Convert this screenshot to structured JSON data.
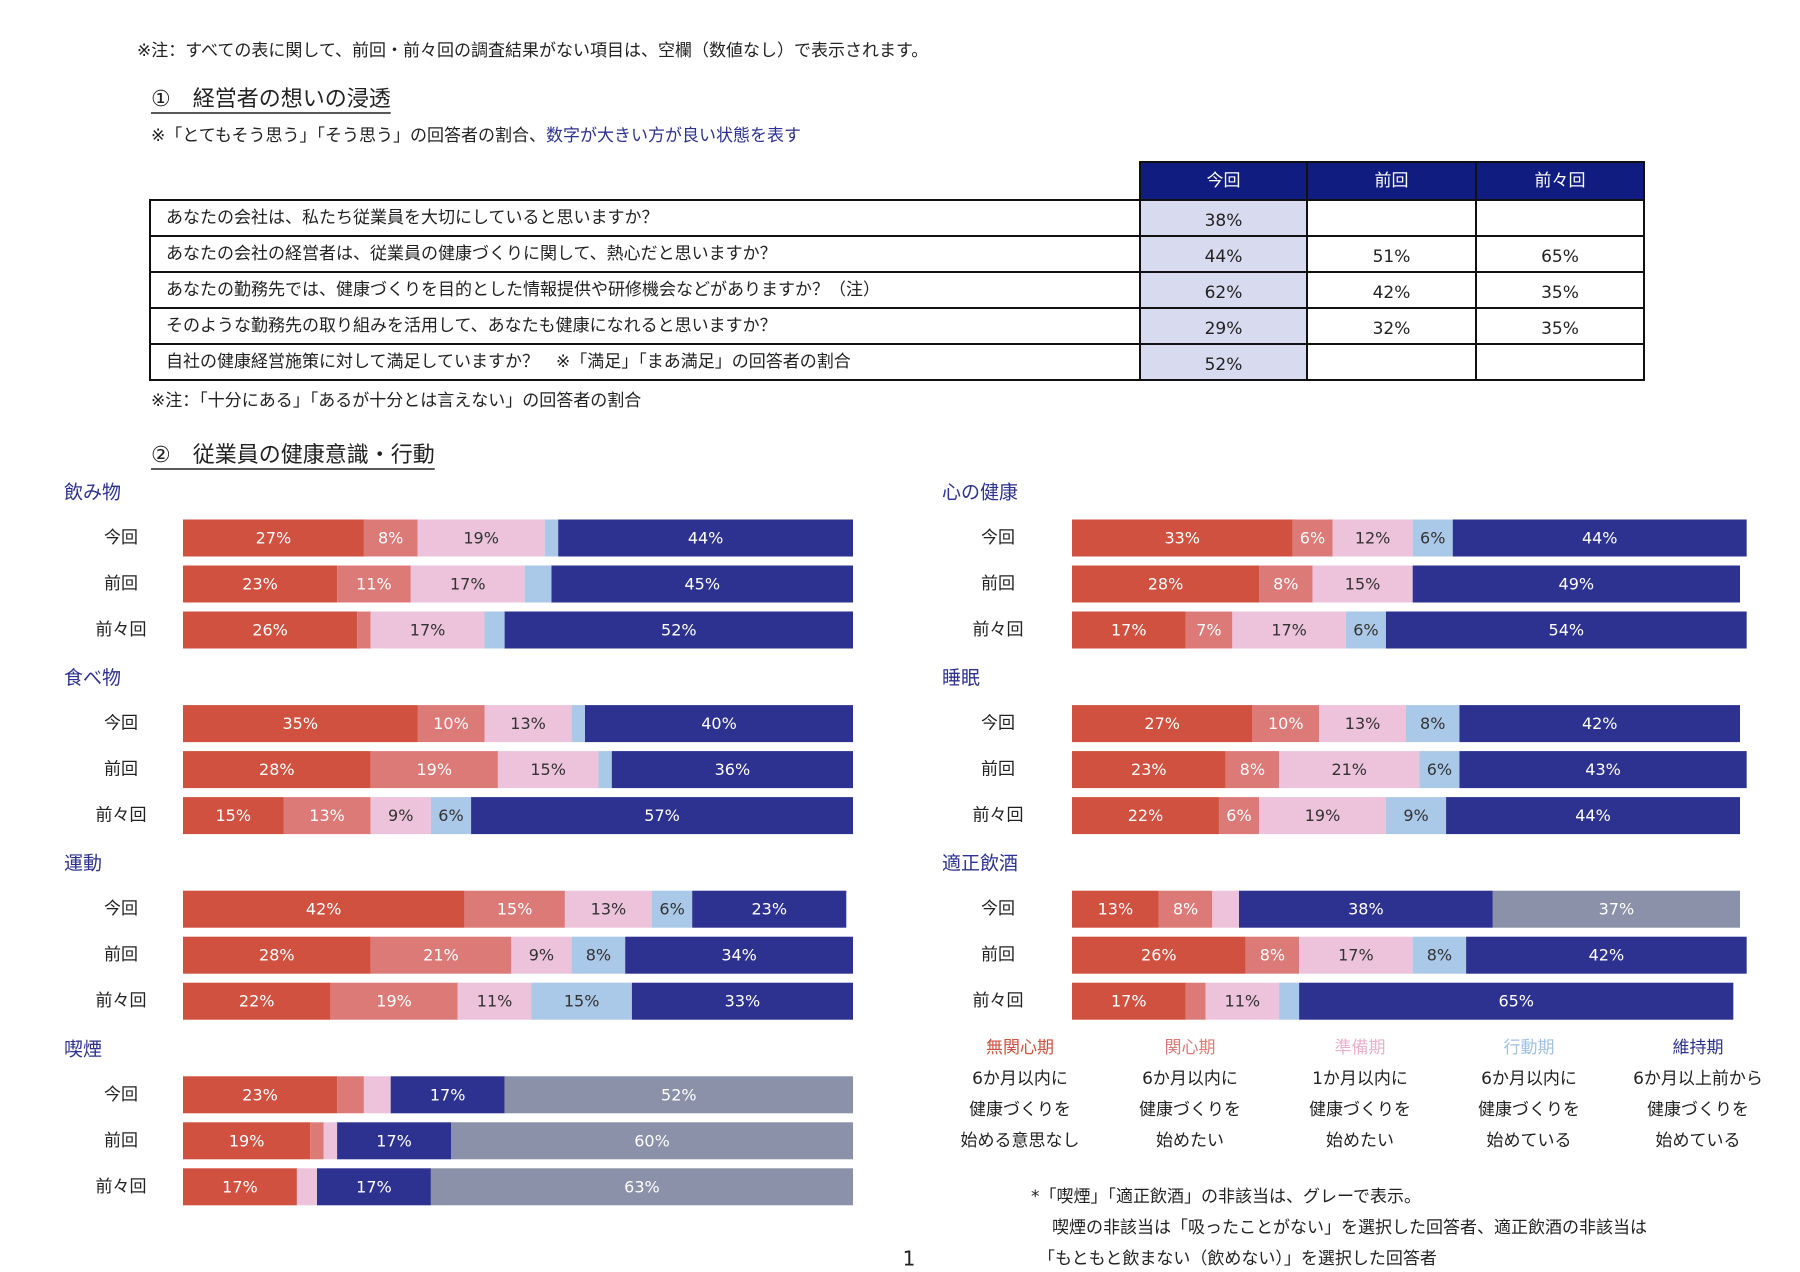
{
  "note": "※注：すべての表に関して、前回・前々回の調査結果がない項目は、空欄（数値なし）で表示されます。",
  "section1": {
    "title": "①　経営者の想いの浸透",
    "subtitle": "※「とてもそう思う」「そう思う」の回答者の割合、",
    "subtitle_emphasis": "数字が大きい方が良い状態を表す",
    "table": {
      "columns": [
        "今回",
        "前回",
        "前々回"
      ],
      "rows": [
        {
          "question": "あなたの会社は、私たち従業員を大切にしていると思いますか？",
          "values": [
            "38%",
            null,
            null
          ]
        },
        {
          "question": "あなたの会社の経営者は、従業員の健康づくりに関して、熱心だと思いますか？",
          "values": [
            "44%",
            "51%",
            "65%"
          ]
        },
        {
          "question": "あなたの勤務先では、健康づくりを目的とした情報提供や研修機会などがありますか？（注）",
          "values": [
            "62%",
            "42%",
            "35%"
          ]
        },
        {
          "question": "そのような勤務先の取り組みを活用して、あなたも健康になれると思いますか？",
          "values": [
            "29%",
            "32%",
            "35%"
          ]
        },
        {
          "question": "自社の健康経営施策に対して満足していますか？　※「満足」「まあ満足」の回答者の割合",
          "values": [
            "52%",
            null,
            null
          ]
        }
      ]
    },
    "table_note": "※注：「十分にある」「あるが十分とは言えない」の回答者の割合"
  },
  "section2_title": "②　従業員の健康意識・行動",
  "chart_data": [
    {
      "type": "bar",
      "stacked": true,
      "orientation": "horizontal",
      "title": "飲み物",
      "categories": [
        "今回",
        "前回",
        "前々回"
      ],
      "xlim": [
        0,
        100
      ],
      "series": [
        {
          "color": "#d0513f",
          "label_color": "#ffffff",
          "values": [
            27,
            23,
            26
          ],
          "value_labels": [
            "27%",
            "23%",
            "26%"
          ]
        },
        {
          "color": "#dc7a78",
          "label_color": "#ffffff",
          "values": [
            8,
            11,
            2
          ],
          "value_labels": [
            "8%",
            "11%",
            null
          ]
        },
        {
          "color": "#ecc3da",
          "label_color": "#333333",
          "values": [
            19,
            17,
            17
          ],
          "value_labels": [
            "19%",
            "17%",
            "17%"
          ]
        },
        {
          "color": "#aac8e8",
          "label_color": "#333333",
          "values": [
            2,
            4,
            3
          ],
          "value_labels": [
            null,
            null,
            null
          ]
        },
        {
          "color": "#2d3290",
          "label_color": "#ffffff",
          "values": [
            44,
            45,
            52
          ],
          "value_labels": [
            "44%",
            "45%",
            "52%"
          ]
        }
      ]
    },
    {
      "type": "bar",
      "stacked": true,
      "orientation": "horizontal",
      "title": "食べ物",
      "categories": [
        "今回",
        "前回",
        "前々回"
      ],
      "xlim": [
        0,
        100
      ],
      "series": [
        {
          "color": "#d0513f",
          "label_color": "#ffffff",
          "values": [
            35,
            28,
            15
          ],
          "value_labels": [
            "35%",
            "28%",
            "15%"
          ]
        },
        {
          "color": "#dc7a78",
          "label_color": "#ffffff",
          "values": [
            10,
            19,
            13
          ],
          "value_labels": [
            "10%",
            "19%",
            "13%"
          ]
        },
        {
          "color": "#ecc3da",
          "label_color": "#333333",
          "values": [
            13,
            15,
            9
          ],
          "value_labels": [
            "13%",
            "15%",
            "9%"
          ]
        },
        {
          "color": "#aac8e8",
          "label_color": "#333333",
          "values": [
            2,
            2,
            6
          ],
          "value_labels": [
            null,
            null,
            "6%"
          ]
        },
        {
          "color": "#2d3290",
          "label_color": "#ffffff",
          "values": [
            40,
            36,
            57
          ],
          "value_labels": [
            "40%",
            "36%",
            "57%"
          ]
        }
      ]
    },
    {
      "type": "bar",
      "stacked": true,
      "orientation": "horizontal",
      "title": "運動",
      "categories": [
        "今回",
        "前回",
        "前々回"
      ],
      "xlim": [
        0,
        100
      ],
      "series": [
        {
          "color": "#d0513f",
          "label_color": "#ffffff",
          "values": [
            42,
            28,
            22
          ],
          "value_labels": [
            "42%",
            "28%",
            "22%"
          ]
        },
        {
          "color": "#dc7a78",
          "label_color": "#ffffff",
          "values": [
            15,
            21,
            19
          ],
          "value_labels": [
            "15%",
            "21%",
            "19%"
          ]
        },
        {
          "color": "#ecc3da",
          "label_color": "#333333",
          "values": [
            13,
            9,
            11
          ],
          "value_labels": [
            "13%",
            "9%",
            "11%"
          ]
        },
        {
          "color": "#aac8e8",
          "label_color": "#333333",
          "values": [
            6,
            8,
            15
          ],
          "value_labels": [
            "6%",
            "8%",
            "15%"
          ]
        },
        {
          "color": "#2d3290",
          "label_color": "#ffffff",
          "values": [
            23,
            34,
            33
          ],
          "value_labels": [
            "23%",
            "34%",
            "33%"
          ]
        }
      ]
    },
    {
      "type": "bar",
      "stacked": true,
      "orientation": "horizontal",
      "title": "喫煙",
      "categories": [
        "今回",
        "前回",
        "前々回"
      ],
      "xlim": [
        0,
        100
      ],
      "series": [
        {
          "color": "#d0513f",
          "label_color": "#ffffff",
          "values": [
            23,
            19,
            17
          ],
          "value_labels": [
            "23%",
            "19%",
            "17%"
          ]
        },
        {
          "color": "#dc7a78",
          "label_color": "#ffffff",
          "values": [
            4,
            2,
            0
          ],
          "value_labels": [
            null,
            null,
            null
          ]
        },
        {
          "color": "#ecc3da",
          "label_color": "#333333",
          "values": [
            4,
            2,
            3
          ],
          "value_labels": [
            null,
            null,
            null
          ]
        },
        {
          "color": "#aac8e8",
          "label_color": "#333333",
          "values": [
            0,
            0,
            0
          ],
          "value_labels": [
            null,
            null,
            null
          ]
        },
        {
          "color": "#2d3290",
          "label_color": "#ffffff",
          "values": [
            17,
            17,
            17
          ],
          "value_labels": [
            "17%",
            "17%",
            "17%"
          ]
        },
        {
          "color": "#8a91a8",
          "label_color": "#ffffff",
          "values": [
            52,
            60,
            63
          ],
          "value_labels": [
            "52%",
            "60%",
            "63%"
          ]
        }
      ]
    },
    {
      "type": "bar",
      "stacked": true,
      "orientation": "horizontal",
      "title": "心の健康",
      "categories": [
        "今回",
        "前回",
        "前々回"
      ],
      "xlim": [
        0,
        100
      ],
      "series": [
        {
          "color": "#d0513f",
          "label_color": "#ffffff",
          "values": [
            33,
            28,
            17
          ],
          "value_labels": [
            "33%",
            "28%",
            "17%"
          ]
        },
        {
          "color": "#dc7a78",
          "label_color": "#ffffff",
          "values": [
            6,
            8,
            7
          ],
          "value_labels": [
            "6%",
            "8%",
            "7%"
          ]
        },
        {
          "color": "#ecc3da",
          "label_color": "#333333",
          "values": [
            12,
            15,
            17
          ],
          "value_labels": [
            "12%",
            "15%",
            "17%"
          ]
        },
        {
          "color": "#aac8e8",
          "label_color": "#333333",
          "values": [
            6,
            0,
            6
          ],
          "value_labels": [
            "6%",
            null,
            "6%"
          ]
        },
        {
          "color": "#2d3290",
          "label_color": "#ffffff",
          "values": [
            44,
            49,
            54
          ],
          "value_labels": [
            "44%",
            "49%",
            "54%"
          ]
        }
      ]
    },
    {
      "type": "bar",
      "stacked": true,
      "orientation": "horizontal",
      "title": "睡眠",
      "categories": [
        "今回",
        "前回",
        "前々回"
      ],
      "xlim": [
        0,
        100
      ],
      "series": [
        {
          "color": "#d0513f",
          "label_color": "#ffffff",
          "values": [
            27,
            23,
            22
          ],
          "value_labels": [
            "27%",
            "23%",
            "22%"
          ]
        },
        {
          "color": "#dc7a78",
          "label_color": "#ffffff",
          "values": [
            10,
            8,
            6
          ],
          "value_labels": [
            "10%",
            "8%",
            "6%"
          ]
        },
        {
          "color": "#ecc3da",
          "label_color": "#333333",
          "values": [
            13,
            21,
            19
          ],
          "value_labels": [
            "13%",
            "21%",
            "19%"
          ]
        },
        {
          "color": "#aac8e8",
          "label_color": "#333333",
          "values": [
            8,
            6,
            9
          ],
          "value_labels": [
            "8%",
            "6%",
            "9%"
          ]
        },
        {
          "color": "#2d3290",
          "label_color": "#ffffff",
          "values": [
            42,
            43,
            44
          ],
          "value_labels": [
            "42%",
            "43%",
            "44%"
          ]
        }
      ]
    },
    {
      "type": "bar",
      "stacked": true,
      "orientation": "horizontal",
      "title": "適正飲酒",
      "categories": [
        "今回",
        "前回",
        "前々回"
      ],
      "xlim": [
        0,
        100
      ],
      "series": [
        {
          "color": "#d0513f",
          "label_color": "#ffffff",
          "values": [
            13,
            26,
            17
          ],
          "value_labels": [
            "13%",
            "26%",
            "17%"
          ]
        },
        {
          "color": "#dc7a78",
          "label_color": "#ffffff",
          "values": [
            8,
            8,
            3
          ],
          "value_labels": [
            "8%",
            "8%",
            null
          ]
        },
        {
          "color": "#ecc3da",
          "label_color": "#333333",
          "values": [
            4,
            17,
            11
          ],
          "value_labels": [
            null,
            "17%",
            "11%"
          ]
        },
        {
          "color": "#aac8e8",
          "label_color": "#333333",
          "values": [
            0,
            8,
            3
          ],
          "value_labels": [
            null,
            "8%",
            null
          ]
        },
        {
          "color": "#2d3290",
          "label_color": "#ffffff",
          "values": [
            38,
            42,
            65
          ],
          "value_labels": [
            "38%",
            "42%",
            "65%"
          ]
        },
        {
          "color": "#8a91a8",
          "label_color": "#ffffff",
          "values": [
            37,
            0,
            0
          ],
          "value_labels": [
            "37%",
            null,
            null
          ]
        }
      ]
    }
  ],
  "legend": [
    {
      "name": "無関心期",
      "color": "#d0513f",
      "description": [
        "6か月以内に",
        "健康づくりを",
        "始める意思なし"
      ]
    },
    {
      "name": "関心期",
      "color": "#dc7a78",
      "description": [
        "6か月以内に",
        "健康づくりを",
        "始めたい"
      ]
    },
    {
      "name": "準備期",
      "color": "#e8b0cc",
      "description": [
        "1か月以内に",
        "健康づくりを",
        "始めたい"
      ]
    },
    {
      "name": "行動期",
      "color": "#a0c0e4",
      "description": [
        "6か月以内に",
        "健康づくりを",
        "始めている"
      ]
    },
    {
      "name": "維持期",
      "color": "#2d3290",
      "description": [
        "6か月以上前から",
        "健康づくりを",
        "始めている"
      ]
    }
  ],
  "footnote": [
    "*「喫煙」「適正飲酒」の非該当は、グレーで表示。",
    "喫煙の非該当は「吸ったことがない」を選択した回答者、適正飲酒の非該当は",
    "「もともと飲まない（飲めない）」を選択した回答者"
  ],
  "page_number": "1"
}
